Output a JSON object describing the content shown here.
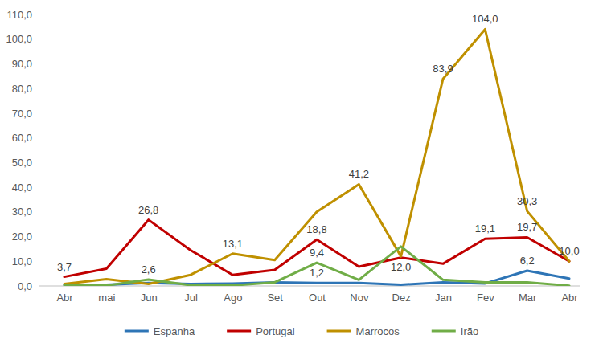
{
  "chart_data": {
    "type": "line",
    "categories": [
      "Abr",
      "mai",
      "Jun",
      "Jul",
      "Ago",
      "Set",
      "Out",
      "Nov",
      "Dez",
      "Jan",
      "Fev",
      "Mar",
      "Abr"
    ],
    "series": [
      {
        "name": "Espanha",
        "color": "#2E75B6",
        "values": [
          0.5,
          0.5,
          1.2,
          0.8,
          1.0,
          1.5,
          1.2,
          1.2,
          0.5,
          1.5,
          1.0,
          6.2,
          3.0
        ],
        "value_labels": [
          null,
          null,
          null,
          null,
          null,
          null,
          "1,2",
          null,
          null,
          null,
          null,
          "6,2",
          null
        ]
      },
      {
        "name": "Portugal",
        "color": "#C00000",
        "values": [
          3.7,
          7.0,
          26.8,
          14.5,
          4.5,
          6.5,
          18.8,
          7.8,
          11.5,
          9.0,
          19.1,
          19.7,
          10.0
        ],
        "value_labels": [
          "3,7",
          null,
          "26,8",
          null,
          null,
          null,
          "18,8",
          null,
          null,
          null,
          "19,1",
          "19,7",
          null
        ]
      },
      {
        "name": "Marrocos",
        "color": "#BF9000",
        "values": [
          0.8,
          2.8,
          0.8,
          4.5,
          13.1,
          10.5,
          30.0,
          41.2,
          12.0,
          83.9,
          104.0,
          30.3,
          10.0
        ],
        "value_labels": [
          null,
          null,
          null,
          null,
          "13,1",
          null,
          null,
          "41,2",
          "12,0",
          "83,9",
          "104,0",
          "30,3",
          "10,0"
        ]
      },
      {
        "name": "Irão",
        "color": "#70AD47",
        "values": [
          0.3,
          0.2,
          2.6,
          0.3,
          0.2,
          1.5,
          9.4,
          2.5,
          16.0,
          2.5,
          1.5,
          1.5,
          0.1
        ],
        "value_labels": [
          null,
          null,
          "2,6",
          null,
          null,
          null,
          "9,4",
          null,
          null,
          null,
          null,
          null,
          null
        ]
      }
    ],
    "ylim": [
      0,
      110
    ],
    "yticks": [
      {
        "value": 0,
        "label": "0,0"
      },
      {
        "value": 10,
        "label": "10,0"
      },
      {
        "value": 20,
        "label": "20,0"
      },
      {
        "value": 30,
        "label": "30,0"
      },
      {
        "value": 40,
        "label": "40,0"
      },
      {
        "value": 50,
        "label": "50,0"
      },
      {
        "value": 60,
        "label": "60,0"
      },
      {
        "value": 70,
        "label": "70,0"
      },
      {
        "value": 80,
        "label": "80,0"
      },
      {
        "value": 90,
        "label": "90,0"
      },
      {
        "value": 100,
        "label": "100,0"
      },
      {
        "value": 110,
        "label": "110,0"
      }
    ],
    "grid": false,
    "legend": "bottom",
    "data_labels": true
  }
}
